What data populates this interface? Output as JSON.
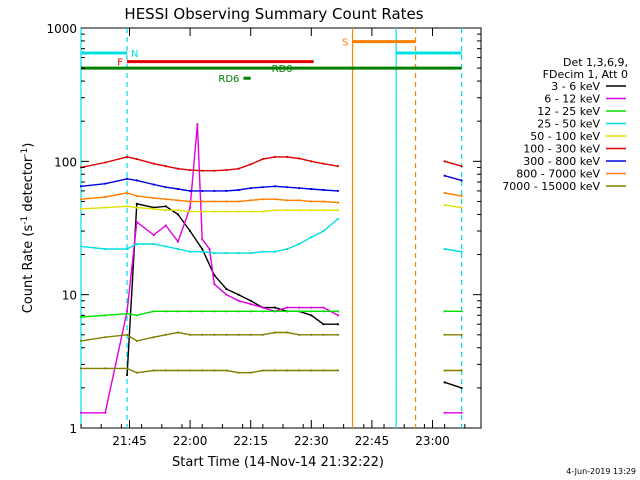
{
  "chart_data": {
    "type": "line",
    "title": "HESSI Observing Summary Count Rates",
    "xlabel": "Start Time (14-Nov-14 21:32:22)",
    "ylabel": "Count Rate (s",
    "ylabel_sup1": "-1",
    "ylabel_mid": " detector",
    "ylabel_sup2": "-1",
    "ylabel_end": ")",
    "y_scale": "log",
    "ylim": [
      1,
      1000
    ],
    "xlim_minutes": [
      21.55,
      23.2
    ],
    "x_ticks": [
      {
        "t": 21.75,
        "label": "21:45"
      },
      {
        "t": 22.0,
        "label": "22:00"
      },
      {
        "t": 22.25,
        "label": "22:15"
      },
      {
        "t": 22.5,
        "label": "22:30"
      },
      {
        "t": 22.75,
        "label": "22:45"
      },
      {
        "t": 23.0,
        "label": "23:00"
      }
    ],
    "y_ticks": [
      {
        "v": 1,
        "label": "1"
      },
      {
        "v": 10,
        "label": "10"
      },
      {
        "v": 100,
        "label": "100"
      },
      {
        "v": 1000,
        "label": "1000"
      }
    ],
    "legend_header": [
      "Det 1,3,6,9,",
      "FDecim 1, Att 0"
    ],
    "legend_position": "right",
    "series": [
      {
        "name": "3 - 6 keV",
        "color": "#000000",
        "x": [
          21.55,
          21.65,
          21.74,
          21.78,
          21.85,
          21.9,
          21.95,
          22.0,
          22.05,
          22.1,
          22.15,
          22.2,
          22.25,
          22.3,
          22.35,
          22.4,
          22.45,
          22.5,
          22.55,
          22.61,
          22.72,
          22.78,
          23.05,
          23.12
        ],
        "y": [
          null,
          null,
          2.5,
          48,
          45,
          46,
          40,
          30,
          22,
          14,
          11,
          10,
          9,
          8,
          8,
          7.5,
          7.5,
          7,
          6,
          6,
          null,
          null,
          2.2,
          2.0
        ]
      },
      {
        "name": "6 - 12 keV",
        "color": "#e000e0",
        "x": [
          21.55,
          21.65,
          21.74,
          21.78,
          21.85,
          21.9,
          21.95,
          22.0,
          22.03,
          22.05,
          22.08,
          22.1,
          22.15,
          22.2,
          22.25,
          22.3,
          22.35,
          22.4,
          22.45,
          22.5,
          22.55,
          22.61,
          22.72,
          22.78,
          23.05,
          23.12
        ],
        "y": [
          1.3,
          1.3,
          7.5,
          35,
          28,
          33,
          25,
          45,
          190,
          26,
          22,
          12,
          10,
          9,
          8.5,
          8,
          7.5,
          8,
          8,
          8,
          8,
          7,
          null,
          null,
          1.3,
          1.3
        ]
      },
      {
        "name": "12 - 25 keV",
        "color": "#00e000",
        "x": [
          21.55,
          21.65,
          21.74,
          21.78,
          21.85,
          21.9,
          21.95,
          22.0,
          22.05,
          22.1,
          22.15,
          22.2,
          22.25,
          22.3,
          22.35,
          22.4,
          22.45,
          22.5,
          22.55,
          22.61,
          22.72,
          22.78,
          23.05,
          23.12
        ],
        "y": [
          6.8,
          7.0,
          7.2,
          7.0,
          7.5,
          7.5,
          7.5,
          7.5,
          7.5,
          7.5,
          7.5,
          7.5,
          7.5,
          7.5,
          7.5,
          7.5,
          7.5,
          7.5,
          7.5,
          7.5,
          null,
          null,
          7.5,
          7.5
        ]
      },
      {
        "name": "25 - 50 keV",
        "color": "#00e0e0",
        "x": [
          21.55,
          21.65,
          21.74,
          21.78,
          21.85,
          21.9,
          21.95,
          22.0,
          22.05,
          22.1,
          22.15,
          22.2,
          22.25,
          22.3,
          22.35,
          22.4,
          22.45,
          22.5,
          22.55,
          22.61,
          22.72,
          22.78,
          23.05,
          23.12
        ],
        "y": [
          23,
          22,
          22,
          24,
          24,
          23,
          22,
          21,
          21,
          20.5,
          20.5,
          20.5,
          20.5,
          21,
          21,
          22,
          24,
          27,
          30,
          37,
          null,
          null,
          22,
          21
        ]
      },
      {
        "name": "50 - 100 keV",
        "color": "#e0e000",
        "x": [
          21.55,
          21.65,
          21.74,
          21.78,
          21.85,
          21.9,
          21.95,
          22.0,
          22.05,
          22.1,
          22.15,
          22.2,
          22.25,
          22.3,
          22.35,
          22.4,
          22.45,
          22.5,
          22.55,
          22.61,
          22.72,
          22.78,
          23.05,
          23.12
        ],
        "y": [
          44,
          45,
          46,
          45,
          44,
          43,
          43,
          42,
          42,
          42,
          42,
          42,
          42,
          42,
          43,
          43,
          43,
          43,
          43,
          43,
          null,
          null,
          47,
          45
        ]
      },
      {
        "name": "100 - 300 keV",
        "color": "#e00000",
        "x": [
          21.55,
          21.65,
          21.74,
          21.78,
          21.85,
          21.9,
          21.95,
          22.0,
          22.05,
          22.1,
          22.15,
          22.2,
          22.25,
          22.3,
          22.35,
          22.4,
          22.45,
          22.5,
          22.55,
          22.61,
          22.72,
          22.78,
          23.05,
          23.12
        ],
        "y": [
          90,
          98,
          108,
          104,
          96,
          92,
          88,
          86,
          85,
          85,
          86,
          88,
          95,
          104,
          108,
          108,
          105,
          100,
          96,
          92,
          null,
          null,
          100,
          92
        ]
      },
      {
        "name": "300 - 800 keV",
        "color": "#0000e0",
        "x": [
          21.55,
          21.65,
          21.74,
          21.78,
          21.85,
          21.9,
          21.95,
          22.0,
          22.05,
          22.1,
          22.15,
          22.2,
          22.25,
          22.3,
          22.35,
          22.4,
          22.45,
          22.5,
          22.55,
          22.61,
          22.72,
          22.78,
          23.05,
          23.12
        ],
        "y": [
          65,
          68,
          74,
          72,
          67,
          64,
          62,
          60,
          60,
          60,
          60,
          61,
          63,
          64,
          65,
          64,
          63,
          62,
          61,
          60,
          null,
          null,
          78,
          72
        ]
      },
      {
        "name": "800 - 7000 keV",
        "color": "#ff8000",
        "x": [
          21.55,
          21.65,
          21.74,
          21.78,
          21.85,
          21.9,
          21.95,
          22.0,
          22.05,
          22.1,
          22.15,
          22.2,
          22.25,
          22.3,
          22.35,
          22.4,
          22.45,
          22.5,
          22.55,
          22.61,
          22.72,
          22.78,
          23.05,
          23.12
        ],
        "y": [
          52,
          54,
          58,
          55,
          53,
          52,
          51,
          50,
          50,
          50,
          50,
          50,
          51,
          52,
          52,
          51,
          51,
          50,
          50,
          49,
          null,
          null,
          58,
          55
        ]
      },
      {
        "name": "7000 - 15000 keV",
        "color": "#808000",
        "x": [
          21.55,
          21.65,
          21.74,
          21.78,
          21.85,
          21.9,
          21.95,
          22.0,
          22.05,
          22.1,
          22.15,
          22.2,
          22.25,
          22.3,
          22.35,
          22.4,
          22.45,
          22.5,
          22.55,
          22.61,
          22.72,
          22.78,
          23.05,
          23.12
        ],
        "y": [
          4.5,
          4.8,
          5.0,
          4.5,
          4.8,
          5.0,
          5.2,
          5.0,
          5.0,
          5.0,
          5.0,
          5.0,
          5.0,
          5.0,
          5.2,
          5.2,
          5.0,
          5.0,
          5.0,
          5.0,
          null,
          null,
          5.0,
          5.0
        ]
      },
      {
        "name": "7000 - 15000 keV (low)",
        "color": "#808000",
        "legend": false,
        "x": [
          21.55,
          21.65,
          21.74,
          21.78,
          21.85,
          21.9,
          21.95,
          22.0,
          22.05,
          22.1,
          22.15,
          22.2,
          22.25,
          22.3,
          22.35,
          22.4,
          22.45,
          22.5,
          22.55,
          22.61,
          22.72,
          22.78,
          23.05,
          23.12
        ],
        "y": [
          2.8,
          2.8,
          2.8,
          2.6,
          2.7,
          2.7,
          2.7,
          2.7,
          2.7,
          2.7,
          2.7,
          2.6,
          2.6,
          2.7,
          2.7,
          2.7,
          2.7,
          2.7,
          2.7,
          2.7,
          null,
          null,
          2.7,
          2.7
        ]
      }
    ],
    "vertical_markers": [
      {
        "t": 21.55,
        "color": "#00e0e0",
        "style": "solid"
      },
      {
        "t": 21.74,
        "color": "#00e0e0",
        "style": "dashed"
      },
      {
        "t": 22.67,
        "color": "#ff8000",
        "style": "solid"
      },
      {
        "t": 22.85,
        "color": "#00e0e0",
        "style": "solid"
      },
      {
        "t": 22.93,
        "color": "#ff8000",
        "style": "dashed"
      },
      {
        "t": 23.12,
        "color": "#00e0e0",
        "style": "dashed"
      }
    ],
    "flag_bars": [
      {
        "label": "N",
        "color": "#00e0e0",
        "t0": 21.55,
        "t1": 21.74,
        "y": 650,
        "width": 3,
        "label_side": "right"
      },
      {
        "label": "N",
        "color": "#00e0e0",
        "t0": 22.85,
        "t1": 23.12,
        "y": 650,
        "width": 3,
        "label_side": "none"
      },
      {
        "label": "F",
        "color": "#e00000",
        "t0": 21.74,
        "t1": 22.51,
        "y": 560,
        "width": 3,
        "label_side": "left"
      },
      {
        "label": "S",
        "color": "#ff8000",
        "t0": 22.67,
        "t1": 22.93,
        "y": 790,
        "width": 3,
        "label_side": "left"
      },
      {
        "label": "RD0",
        "color": "#008000",
        "t0": 21.55,
        "t1": 23.12,
        "y": 500,
        "width": 3,
        "label_side": "none"
      },
      {
        "label": "RD0",
        "color": "#008000",
        "t0": 22.3,
        "t1": 22.32,
        "y": 500,
        "width": 0,
        "label_side": "right"
      },
      {
        "label": "RD6",
        "color": "#008000",
        "t0": 22.22,
        "t1": 22.25,
        "y": 420,
        "width": 3,
        "label_side": "left"
      }
    ]
  },
  "timestamp": "4-Jun-2019 13:29"
}
